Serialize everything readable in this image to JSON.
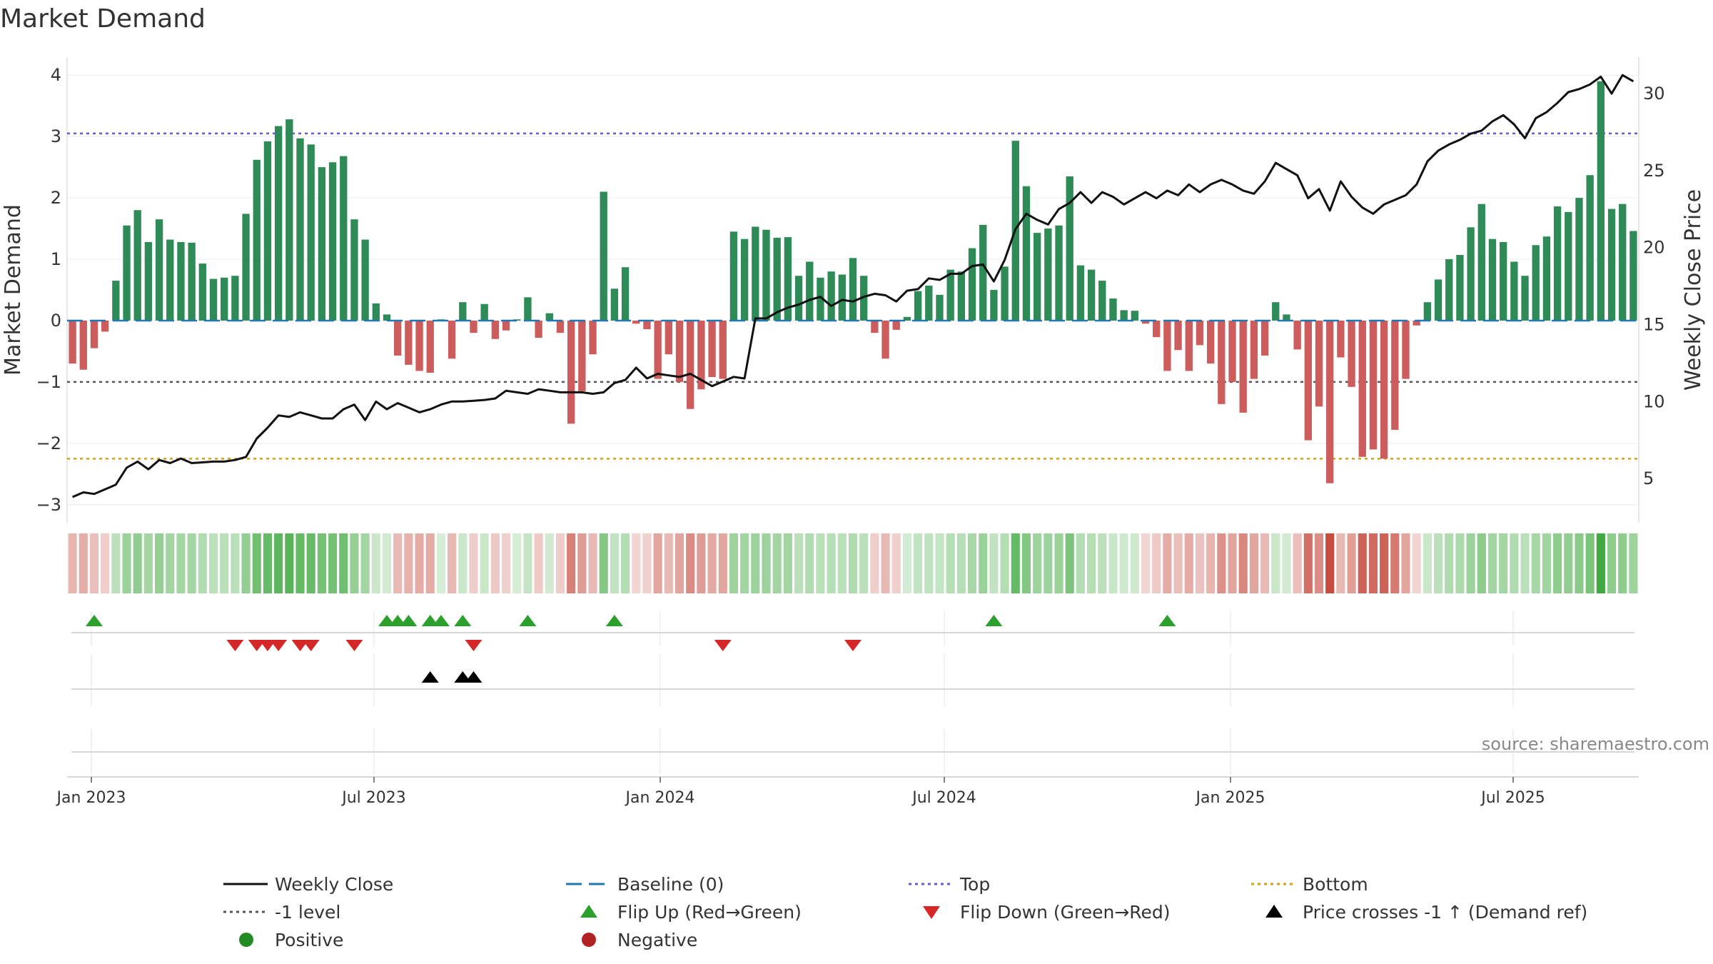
{
  "chart_data": {
    "type": "bar",
    "title": "Market Demand",
    "ylabel": "Market Demand",
    "y2label": "Weekly Close Price",
    "ylim": [
      -3.2,
      4.2
    ],
    "y2lim": [
      2.5,
      32
    ],
    "yticks": [
      "−3",
      "−2",
      "−1",
      "0",
      "1",
      "2",
      "3",
      "4"
    ],
    "y2ticks": [
      "5",
      "10",
      "15",
      "20",
      "25",
      "30"
    ],
    "xticks": [
      "Jan 2023",
      "Jul 2023",
      "Jan 2024",
      "Jul 2024",
      "Jan 2025",
      "Jul 2025"
    ],
    "top_level": 3.05,
    "bottom_level": -2.25,
    "minus_one_level": -1,
    "demand": [
      -0.7,
      -0.8,
      -0.45,
      -0.18,
      0.65,
      1.55,
      1.8,
      1.28,
      1.65,
      1.32,
      1.28,
      1.27,
      0.93,
      0.68,
      0.7,
      0.73,
      1.74,
      2.62,
      2.92,
      3.17,
      3.28,
      2.97,
      2.87,
      2.5,
      2.58,
      2.68,
      1.65,
      1.32,
      0.28,
      0.1,
      -0.57,
      -0.72,
      -0.82,
      -0.85,
      0.02,
      -0.62,
      0.3,
      -0.2,
      0.27,
      -0.3,
      -0.16,
      0.02,
      0.38,
      -0.28,
      0.12,
      -0.2,
      -1.68,
      -1.15,
      -0.55,
      2.1,
      0.52,
      0.87,
      -0.05,
      -0.14,
      -0.95,
      -0.55,
      -1.0,
      -1.44,
      -1.12,
      -0.92,
      -0.95,
      1.45,
      1.33,
      1.53,
      1.48,
      1.35,
      1.36,
      0.73,
      0.96,
      0.7,
      0.8,
      0.75,
      1.02,
      0.73,
      -0.2,
      -0.62,
      -0.15,
      0.06,
      0.48,
      0.57,
      0.42,
      0.83,
      0.8,
      1.18,
      1.56,
      0.5,
      0.88,
      2.93,
      2.19,
      1.43,
      1.5,
      1.55,
      2.35,
      0.9,
      0.83,
      0.65,
      0.36,
      0.17,
      0.16,
      -0.05,
      -0.27,
      -0.82,
      -0.48,
      -0.82,
      -0.4,
      -0.7,
      -1.36,
      -1.0,
      -1.5,
      -0.95,
      -0.57,
      0.3,
      0.1,
      -0.47,
      -1.95,
      -1.4,
      -2.65,
      -0.6,
      -1.08,
      -2.22,
      -2.1,
      -2.25,
      -1.78,
      -0.95,
      -0.08,
      0.3,
      0.67,
      1.0,
      1.07,
      1.52,
      1.9,
      1.33,
      1.28,
      0.96,
      0.73,
      1.23,
      1.37,
      1.86,
      1.77,
      2.0,
      2.37,
      3.9,
      1.82,
      1.9,
      1.46
    ],
    "weekly_close": [
      3.8,
      4.1,
      4.0,
      4.3,
      4.6,
      5.7,
      6.1,
      5.6,
      6.2,
      6.0,
      6.3,
      6.0,
      6.05,
      6.1,
      6.1,
      6.2,
      6.4,
      7.6,
      8.3,
      9.1,
      9.0,
      9.3,
      9.1,
      8.9,
      8.9,
      9.5,
      9.8,
      8.8,
      10.0,
      9.5,
      9.9,
      9.6,
      9.3,
      9.5,
      9.8,
      10.0,
      10.0,
      10.05,
      10.1,
      10.2,
      10.7,
      10.6,
      10.5,
      10.8,
      10.7,
      10.6,
      10.6,
      10.6,
      10.5,
      10.6,
      11.2,
      11.4,
      12.2,
      11.5,
      11.8,
      11.7,
      11.6,
      11.8,
      11.4,
      11.0,
      11.3,
      11.6,
      11.5,
      15.4,
      15.4,
      15.8,
      16.1,
      16.3,
      16.6,
      16.8,
      16.2,
      16.6,
      16.5,
      16.8,
      17.0,
      16.9,
      16.5,
      17.2,
      17.3,
      18.0,
      17.9,
      18.3,
      18.3,
      18.8,
      18.9,
      17.8,
      19.2,
      21.2,
      22.2,
      21.8,
      21.5,
      22.5,
      22.9,
      23.6,
      22.9,
      23.6,
      23.3,
      22.8,
      23.2,
      23.6,
      23.2,
      23.7,
      23.4,
      24.1,
      23.6,
      24.1,
      24.4,
      24.1,
      23.7,
      23.5,
      24.3,
      25.5,
      25.1,
      24.7,
      23.2,
      23.8,
      22.4,
      24.3,
      23.3,
      22.6,
      22.2,
      22.8,
      23.1,
      23.4,
      24.1,
      25.6,
      26.3,
      26.7,
      27.0,
      27.4,
      27.6,
      28.2,
      28.6,
      28.0,
      27.1,
      28.4,
      28.8,
      29.4,
      30.1,
      30.3,
      30.6,
      31.1,
      30.0,
      31.2,
      30.8
    ],
    "flip_up_weeks": [
      2,
      29,
      30,
      31,
      33,
      34,
      36,
      42,
      50,
      85,
      101
    ],
    "flip_down_weeks": [
      15,
      17,
      18,
      19,
      21,
      22,
      26,
      37,
      60,
      72
    ],
    "price_cross_weeks": [
      33,
      36,
      37
    ],
    "series": [
      {
        "name": "Weekly Close",
        "color": "#111111"
      },
      {
        "name": "Baseline (0)",
        "color": "#1f77b4"
      },
      {
        "name": "Top",
        "color": "#6a5acd"
      },
      {
        "name": "Bottom",
        "color": "#d4a017"
      },
      {
        "name": "-1 level",
        "color": "#555555"
      },
      {
        "name": "Flip Up (Red→Green)",
        "color": "#2ca02c"
      },
      {
        "name": "Flip Down (Green→Red)",
        "color": "#d62728"
      },
      {
        "name": "Price crosses -1 ↑ (Demand ref)",
        "color": "#000000"
      },
      {
        "name": "Positive",
        "color": "#228b22"
      },
      {
        "name": "Negative",
        "color": "#b22222"
      }
    ],
    "source": "source: sharemaestro.com"
  },
  "colors": {
    "positive_bar": "#2e8b57",
    "negative_bar": "#cd5c5c",
    "top_line": "#6a5acd",
    "bottom_line": "#d4a017",
    "minus_one_line": "#555555",
    "baseline": "#1f77b4",
    "close_line": "#111111"
  }
}
